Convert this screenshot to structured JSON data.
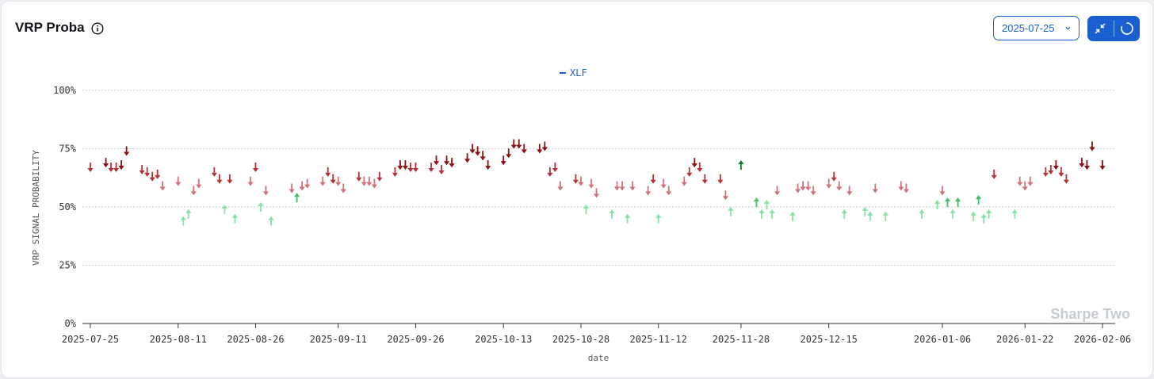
{
  "header": {
    "title": "VRP Proba",
    "date_value": "2025-07-25"
  },
  "colors": {
    "accent": "#1a5fd0",
    "down_dark": "#8b0e12",
    "down_mid": "#b53138",
    "down_light": "#d07379",
    "up_dark": "#0f7a2d",
    "up_mid": "#3fbf6b",
    "up_light": "#86e3a3"
  },
  "watermark": "Sharpe Two",
  "chart_data": {
    "type": "scatter",
    "xlabel": "date",
    "ylabel": "VRP SIGNAL PROBABILITY",
    "ylim": [
      0,
      100
    ],
    "yticks": [
      "0%",
      "25%",
      "50%",
      "75%",
      "100%"
    ],
    "grid": true,
    "legend": {
      "position": "top-center",
      "entries": [
        "XLF"
      ]
    },
    "x_ticks": [
      "2025-07-25",
      "2025-08-11",
      "2025-08-26",
      "2025-09-11",
      "2025-09-26",
      "2025-10-13",
      "2025-10-28",
      "2025-11-12",
      "2025-11-28",
      "2025-12-15",
      "2026-01-06",
      "2026-01-22",
      "2026-02-06"
    ],
    "series": [
      {
        "name": "XLF",
        "points": [
          {
            "x": "2025-07-25",
            "y": 67,
            "dir": "down"
          },
          {
            "x": "2025-07-28",
            "y": 69,
            "dir": "down"
          },
          {
            "x": "2025-07-29",
            "y": 67,
            "dir": "down"
          },
          {
            "x": "2025-07-30",
            "y": 67,
            "dir": "down"
          },
          {
            "x": "2025-07-31",
            "y": 68,
            "dir": "down"
          },
          {
            "x": "2025-08-01",
            "y": 74,
            "dir": "down"
          },
          {
            "x": "2025-08-04",
            "y": 66,
            "dir": "down"
          },
          {
            "x": "2025-08-05",
            "y": 65,
            "dir": "down"
          },
          {
            "x": "2025-08-06",
            "y": 63,
            "dir": "down"
          },
          {
            "x": "2025-08-07",
            "y": 64,
            "dir": "down"
          },
          {
            "x": "2025-08-08",
            "y": 59,
            "dir": "down"
          },
          {
            "x": "2025-08-11",
            "y": 61,
            "dir": "down"
          },
          {
            "x": "2025-08-12",
            "y": 44,
            "dir": "up"
          },
          {
            "x": "2025-08-13",
            "y": 47,
            "dir": "up"
          },
          {
            "x": "2025-08-14",
            "y": 57,
            "dir": "down"
          },
          {
            "x": "2025-08-15",
            "y": 60,
            "dir": "down"
          },
          {
            "x": "2025-08-18",
            "y": 65,
            "dir": "down"
          },
          {
            "x": "2025-08-19",
            "y": 62,
            "dir": "down"
          },
          {
            "x": "2025-08-20",
            "y": 49,
            "dir": "up"
          },
          {
            "x": "2025-08-21",
            "y": 62,
            "dir": "down"
          },
          {
            "x": "2025-08-22",
            "y": 45,
            "dir": "up"
          },
          {
            "x": "2025-08-25",
            "y": 61,
            "dir": "down"
          },
          {
            "x": "2025-08-26",
            "y": 67,
            "dir": "down"
          },
          {
            "x": "2025-08-27",
            "y": 50,
            "dir": "up"
          },
          {
            "x": "2025-08-28",
            "y": 57,
            "dir": "down"
          },
          {
            "x": "2025-08-29",
            "y": 44,
            "dir": "up"
          },
          {
            "x": "2025-09-02",
            "y": 58,
            "dir": "down"
          },
          {
            "x": "2025-09-03",
            "y": 54,
            "dir": "up"
          },
          {
            "x": "2025-09-04",
            "y": 59,
            "dir": "down"
          },
          {
            "x": "2025-09-05",
            "y": 60,
            "dir": "down"
          },
          {
            "x": "2025-09-08",
            "y": 61,
            "dir": "down"
          },
          {
            "x": "2025-09-09",
            "y": 65,
            "dir": "down"
          },
          {
            "x": "2025-09-10",
            "y": 62,
            "dir": "down"
          },
          {
            "x": "2025-09-11",
            "y": 61,
            "dir": "down"
          },
          {
            "x": "2025-09-12",
            "y": 58,
            "dir": "down"
          },
          {
            "x": "2025-09-15",
            "y": 63,
            "dir": "down"
          },
          {
            "x": "2025-09-16",
            "y": 61,
            "dir": "down"
          },
          {
            "x": "2025-09-17",
            "y": 61,
            "dir": "down"
          },
          {
            "x": "2025-09-18",
            "y": 60,
            "dir": "down"
          },
          {
            "x": "2025-09-19",
            "y": 63,
            "dir": "down"
          },
          {
            "x": "2025-09-22",
            "y": 65,
            "dir": "down"
          },
          {
            "x": "2025-09-23",
            "y": 68,
            "dir": "down"
          },
          {
            "x": "2025-09-24",
            "y": 68,
            "dir": "down"
          },
          {
            "x": "2025-09-25",
            "y": 67,
            "dir": "down"
          },
          {
            "x": "2025-09-26",
            "y": 67,
            "dir": "down"
          },
          {
            "x": "2025-09-29",
            "y": 67,
            "dir": "down"
          },
          {
            "x": "2025-09-30",
            "y": 70,
            "dir": "down"
          },
          {
            "x": "2025-10-01",
            "y": 66,
            "dir": "down"
          },
          {
            "x": "2025-10-02",
            "y": 70,
            "dir": "down"
          },
          {
            "x": "2025-10-03",
            "y": 69,
            "dir": "down"
          },
          {
            "x": "2025-10-06",
            "y": 71,
            "dir": "down"
          },
          {
            "x": "2025-10-07",
            "y": 75,
            "dir": "down"
          },
          {
            "x": "2025-10-08",
            "y": 74,
            "dir": "down"
          },
          {
            "x": "2025-10-09",
            "y": 72,
            "dir": "down"
          },
          {
            "x": "2025-10-10",
            "y": 68,
            "dir": "down"
          },
          {
            "x": "2025-10-13",
            "y": 70,
            "dir": "down"
          },
          {
            "x": "2025-10-14",
            "y": 73,
            "dir": "down"
          },
          {
            "x": "2025-10-15",
            "y": 77,
            "dir": "down"
          },
          {
            "x": "2025-10-16",
            "y": 77,
            "dir": "down"
          },
          {
            "x": "2025-10-17",
            "y": 75,
            "dir": "down"
          },
          {
            "x": "2025-10-20",
            "y": 75,
            "dir": "down"
          },
          {
            "x": "2025-10-21",
            "y": 76,
            "dir": "down"
          },
          {
            "x": "2025-10-22",
            "y": 65,
            "dir": "down"
          },
          {
            "x": "2025-10-23",
            "y": 67,
            "dir": "down"
          },
          {
            "x": "2025-10-24",
            "y": 59,
            "dir": "down"
          },
          {
            "x": "2025-10-27",
            "y": 62,
            "dir": "down"
          },
          {
            "x": "2025-10-28",
            "y": 61,
            "dir": "down"
          },
          {
            "x": "2025-10-29",
            "y": 49,
            "dir": "up"
          },
          {
            "x": "2025-10-30",
            "y": 60,
            "dir": "down"
          },
          {
            "x": "2025-10-31",
            "y": 56,
            "dir": "down"
          },
          {
            "x": "2025-11-03",
            "y": 47,
            "dir": "up"
          },
          {
            "x": "2025-11-04",
            "y": 59,
            "dir": "down"
          },
          {
            "x": "2025-11-05",
            "y": 59,
            "dir": "down"
          },
          {
            "x": "2025-11-06",
            "y": 45,
            "dir": "up"
          },
          {
            "x": "2025-11-07",
            "y": 59,
            "dir": "down"
          },
          {
            "x": "2025-11-10",
            "y": 57,
            "dir": "down"
          },
          {
            "x": "2025-11-11",
            "y": 62,
            "dir": "down"
          },
          {
            "x": "2025-11-12",
            "y": 45,
            "dir": "up"
          },
          {
            "x": "2025-11-13",
            "y": 60,
            "dir": "down"
          },
          {
            "x": "2025-11-14",
            "y": 57,
            "dir": "down"
          },
          {
            "x": "2025-11-17",
            "y": 61,
            "dir": "down"
          },
          {
            "x": "2025-11-18",
            "y": 65,
            "dir": "down"
          },
          {
            "x": "2025-11-19",
            "y": 69,
            "dir": "down"
          },
          {
            "x": "2025-11-20",
            "y": 67,
            "dir": "down"
          },
          {
            "x": "2025-11-21",
            "y": 62,
            "dir": "down"
          },
          {
            "x": "2025-11-24",
            "y": 62,
            "dir": "down"
          },
          {
            "x": "2025-11-25",
            "y": 55,
            "dir": "down"
          },
          {
            "x": "2025-11-26",
            "y": 48,
            "dir": "up"
          },
          {
            "x": "2025-11-28",
            "y": 68,
            "dir": "up"
          },
          {
            "x": "2025-12-01",
            "y": 52,
            "dir": "up"
          },
          {
            "x": "2025-12-02",
            "y": 47,
            "dir": "up"
          },
          {
            "x": "2025-12-03",
            "y": 51,
            "dir": "up"
          },
          {
            "x": "2025-12-04",
            "y": 47,
            "dir": "up"
          },
          {
            "x": "2025-12-05",
            "y": 57,
            "dir": "down"
          },
          {
            "x": "2025-12-08",
            "y": 46,
            "dir": "up"
          },
          {
            "x": "2025-12-09",
            "y": 58,
            "dir": "down"
          },
          {
            "x": "2025-12-10",
            "y": 59,
            "dir": "down"
          },
          {
            "x": "2025-12-11",
            "y": 59,
            "dir": "down"
          },
          {
            "x": "2025-12-12",
            "y": 57,
            "dir": "down"
          },
          {
            "x": "2025-12-15",
            "y": 60,
            "dir": "down"
          },
          {
            "x": "2025-12-16",
            "y": 63,
            "dir": "down"
          },
          {
            "x": "2025-12-17",
            "y": 59,
            "dir": "down"
          },
          {
            "x": "2025-12-18",
            "y": 47,
            "dir": "up"
          },
          {
            "x": "2025-12-19",
            "y": 57,
            "dir": "down"
          },
          {
            "x": "2025-12-22",
            "y": 48,
            "dir": "up"
          },
          {
            "x": "2025-12-23",
            "y": 46,
            "dir": "up"
          },
          {
            "x": "2025-12-24",
            "y": 58,
            "dir": "down"
          },
          {
            "x": "2025-12-26",
            "y": 46,
            "dir": "up"
          },
          {
            "x": "2025-12-29",
            "y": 59,
            "dir": "down"
          },
          {
            "x": "2025-12-30",
            "y": 58,
            "dir": "down"
          },
          {
            "x": "2026-01-02",
            "y": 47,
            "dir": "up"
          },
          {
            "x": "2026-01-05",
            "y": 51,
            "dir": "up"
          },
          {
            "x": "2026-01-06",
            "y": 57,
            "dir": "down"
          },
          {
            "x": "2026-01-07",
            "y": 52,
            "dir": "up"
          },
          {
            "x": "2026-01-08",
            "y": 47,
            "dir": "up"
          },
          {
            "x": "2026-01-09",
            "y": 52,
            "dir": "up"
          },
          {
            "x": "2026-01-12",
            "y": 46,
            "dir": "up"
          },
          {
            "x": "2026-01-13",
            "y": 53,
            "dir": "up"
          },
          {
            "x": "2026-01-14",
            "y": 45,
            "dir": "up"
          },
          {
            "x": "2026-01-15",
            "y": 47,
            "dir": "up"
          },
          {
            "x": "2026-01-16",
            "y": 64,
            "dir": "down"
          },
          {
            "x": "2026-01-20",
            "y": 47,
            "dir": "up"
          },
          {
            "x": "2026-01-21",
            "y": 61,
            "dir": "down"
          },
          {
            "x": "2026-01-22",
            "y": 59,
            "dir": "down"
          },
          {
            "x": "2026-01-23",
            "y": 61,
            "dir": "down"
          },
          {
            "x": "2026-01-26",
            "y": 65,
            "dir": "down"
          },
          {
            "x": "2026-01-27",
            "y": 66,
            "dir": "down"
          },
          {
            "x": "2026-01-28",
            "y": 68,
            "dir": "down"
          },
          {
            "x": "2026-01-29",
            "y": 65,
            "dir": "down"
          },
          {
            "x": "2026-01-30",
            "y": 62,
            "dir": "down"
          },
          {
            "x": "2026-02-02",
            "y": 69,
            "dir": "down"
          },
          {
            "x": "2026-02-03",
            "y": 68,
            "dir": "down"
          },
          {
            "x": "2026-02-04",
            "y": 76,
            "dir": "down"
          },
          {
            "x": "2026-02-06",
            "y": 68,
            "dir": "down"
          }
        ]
      }
    ]
  }
}
